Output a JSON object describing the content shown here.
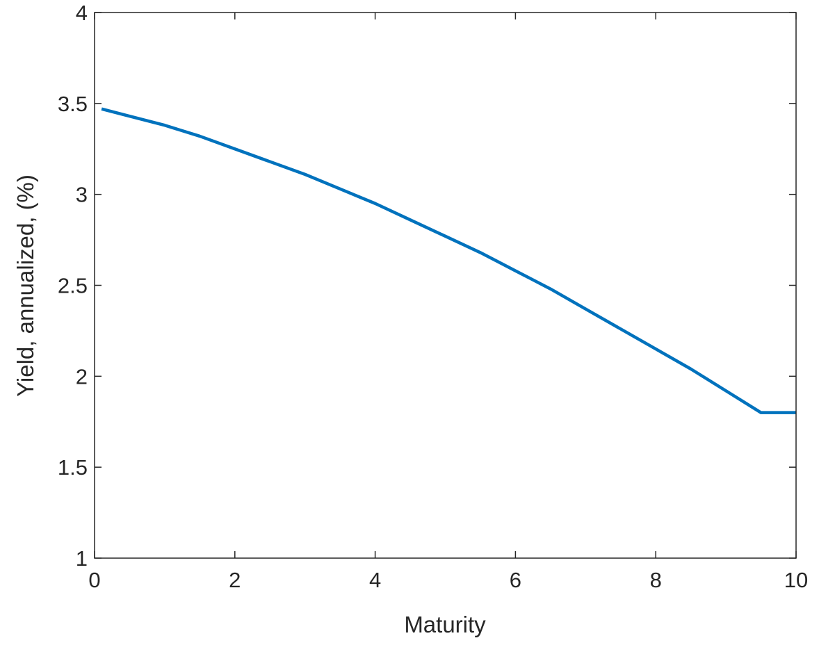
{
  "chart_data": {
    "type": "line",
    "title": "",
    "xlabel": "Maturity",
    "ylabel": "Yield, annualized, (%)",
    "xlim": [
      0,
      10
    ],
    "ylim": [
      1,
      4
    ],
    "xticks": [
      0,
      2,
      4,
      6,
      8,
      10
    ],
    "xtick_labels": [
      "0",
      "2",
      "4",
      "6",
      "8",
      "10"
    ],
    "yticks": [
      1,
      1.5,
      2,
      2.5,
      3,
      3.5,
      4
    ],
    "ytick_labels": [
      "1",
      "1.5",
      "2",
      "2.5",
      "3",
      "3.5",
      "4"
    ],
    "grid": false,
    "legend": "none",
    "series": [
      {
        "color": "#0072bd",
        "x": [
          0.1,
          0.5,
          1,
          1.5,
          2,
          2.5,
          3,
          3.5,
          4,
          4.5,
          5,
          5.5,
          6,
          6.5,
          7,
          7.5,
          8,
          8.5,
          9,
          9.5,
          10
        ],
        "y": [
          3.47,
          3.43,
          3.38,
          3.32,
          3.25,
          3.18,
          3.11,
          3.03,
          2.95,
          2.86,
          2.77,
          2.68,
          2.58,
          2.48,
          2.37,
          2.26,
          2.15,
          2.04,
          1.92,
          1.8,
          1.8
        ]
      }
    ]
  }
}
